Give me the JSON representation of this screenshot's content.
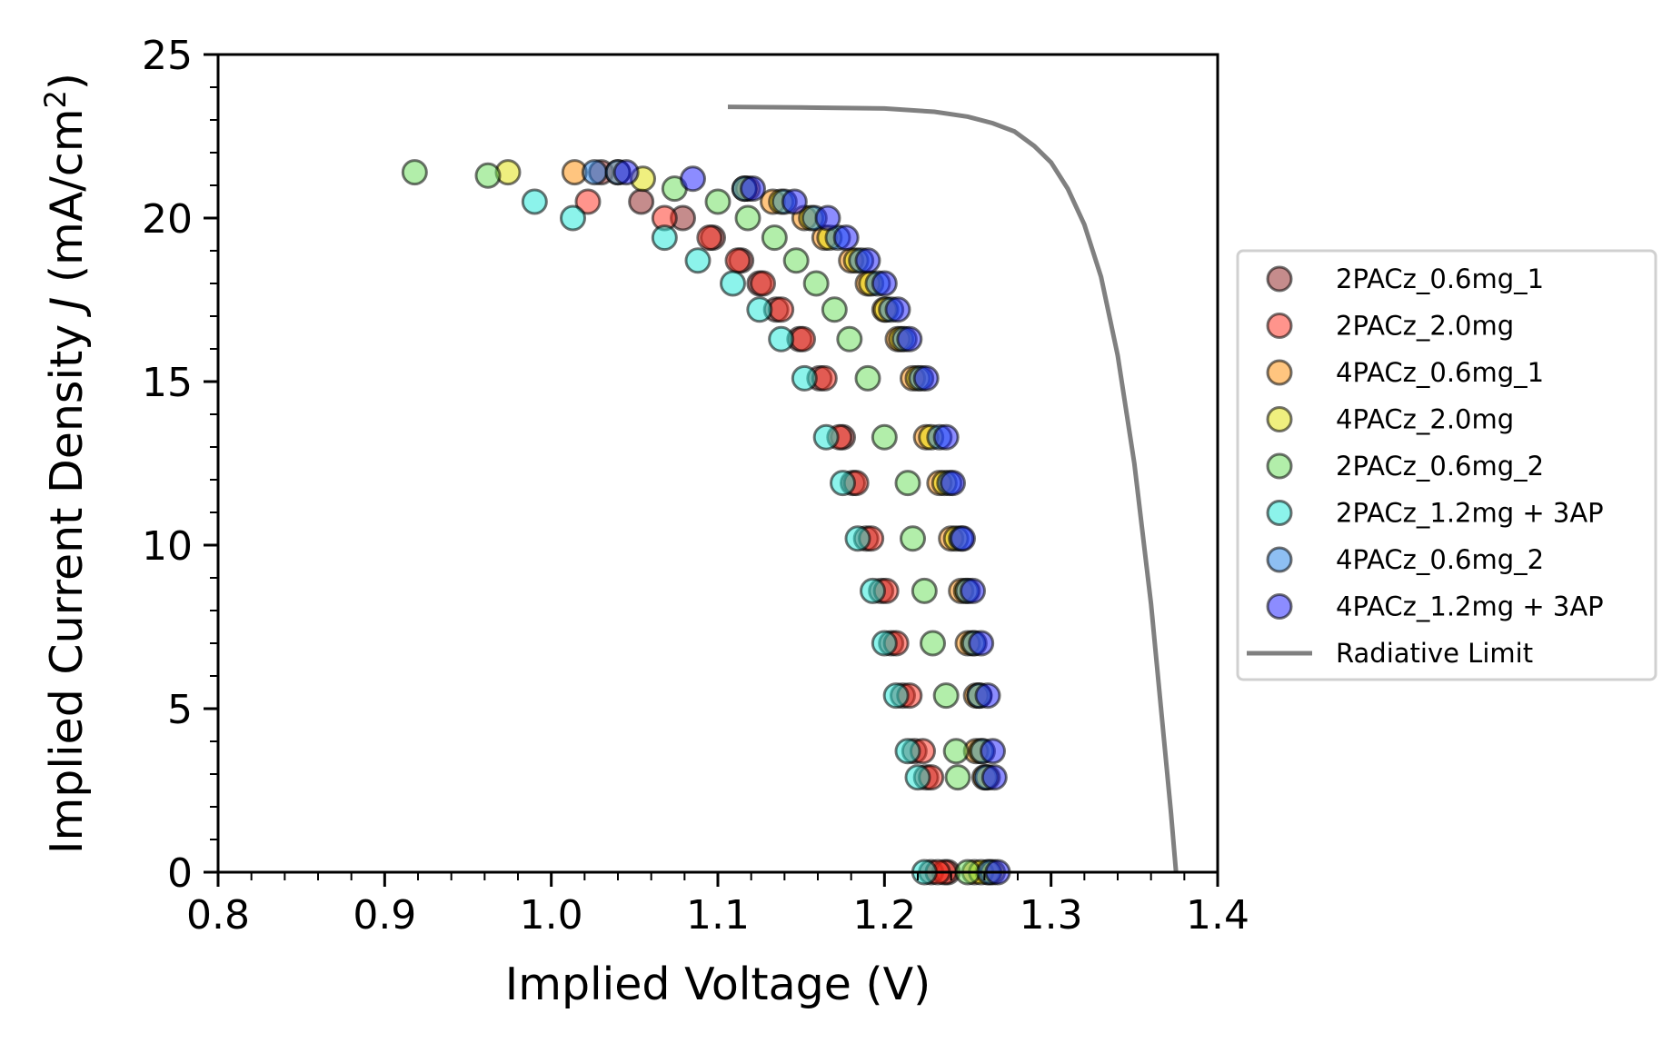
{
  "chart_data": {
    "type": "scatter",
    "xlabel": "Implied Voltage (V)",
    "ylabel_parts": [
      "Implied Current Density ",
      "J",
      " (mA/cm",
      "2",
      ")"
    ],
    "xlim": [
      0.8,
      1.4
    ],
    "ylim": [
      0,
      25
    ],
    "xticks": [
      {
        "value": 0.8,
        "label": "0.8"
      },
      {
        "value": 0.9,
        "label": "0.9"
      },
      {
        "value": 1.0,
        "label": "1.0"
      },
      {
        "value": 1.1,
        "label": "1.1"
      },
      {
        "value": 1.2,
        "label": "1.2"
      },
      {
        "value": 1.3,
        "label": "1.3"
      },
      {
        "value": 1.4,
        "label": "1.4"
      }
    ],
    "yticks": [
      {
        "value": 0,
        "label": "0"
      },
      {
        "value": 5,
        "label": "5"
      },
      {
        "value": 10,
        "label": "10"
      },
      {
        "value": 15,
        "label": "15"
      },
      {
        "value": 20,
        "label": "20"
      },
      {
        "value": 25,
        "label": "25"
      }
    ],
    "grid": false,
    "legend_position": "outside-right",
    "series": [
      {
        "name": "2PACz_0.6mg_1",
        "kind": "scatter",
        "color": "#8B1A1A",
        "x": [
          1.03,
          1.054,
          1.079,
          1.097,
          1.114,
          1.125,
          1.135,
          1.149,
          1.161,
          1.175,
          1.181,
          1.189,
          1.198,
          1.204,
          1.211,
          1.218,
          1.225,
          1.228,
          1.238
        ],
        "y": [
          21.4,
          20.5,
          20.0,
          19.4,
          18.7,
          18.0,
          17.2,
          16.3,
          15.1,
          13.3,
          11.9,
          10.2,
          8.6,
          7.0,
          5.4,
          3.7,
          2.9,
          0.0,
          0.0
        ]
      },
      {
        "name": "2PACz_2.0mg",
        "kind": "scatter",
        "color": "#FF2A1A",
        "x": [
          1.022,
          1.068,
          1.095,
          1.112,
          1.127,
          1.138,
          1.151,
          1.164,
          1.173,
          1.183,
          1.192,
          1.201,
          1.207,
          1.215,
          1.223,
          1.228,
          1.236,
          1.232
        ],
        "y": [
          20.5,
          20.0,
          19.4,
          18.7,
          18.0,
          17.2,
          16.3,
          15.1,
          13.3,
          11.9,
          10.2,
          8.6,
          7.0,
          5.4,
          3.7,
          2.9,
          0.0,
          0.0
        ]
      },
      {
        "name": "4PACz_0.6mg_1",
        "kind": "scatter",
        "color": "#FF8C00",
        "x": [
          1.014,
          1.04,
          1.118,
          1.133,
          1.152,
          1.164,
          1.18,
          1.19,
          1.2,
          1.208,
          1.217,
          1.225,
          1.233,
          1.24,
          1.246,
          1.25,
          1.255,
          1.255,
          1.26,
          1.254,
          1.262
        ],
        "y": [
          21.4,
          21.4,
          20.9,
          20.5,
          20.0,
          19.4,
          18.7,
          18.0,
          17.2,
          16.3,
          15.1,
          13.3,
          11.9,
          10.2,
          8.6,
          7.0,
          5.4,
          3.7,
          2.9,
          0.0,
          0.0
        ]
      },
      {
        "name": "4PACz_2.0mg",
        "kind": "scatter",
        "color": "#E0E000",
        "x": [
          0.974,
          1.055,
          1.116,
          1.138,
          1.156,
          1.167,
          1.183,
          1.192,
          1.201,
          1.21,
          1.22,
          1.228,
          1.236,
          1.243,
          1.249,
          1.253,
          1.257,
          1.258,
          1.262,
          1.258,
          1.265
        ],
        "y": [
          21.4,
          21.2,
          20.9,
          20.5,
          20.0,
          19.4,
          18.7,
          18.0,
          17.2,
          16.3,
          15.1,
          13.3,
          11.9,
          10.2,
          8.6,
          7.0,
          5.4,
          3.7,
          2.9,
          0.0,
          0.0
        ]
      },
      {
        "name": "2PACz_0.6mg_2",
        "kind": "scatter",
        "color": "#66DD55",
        "x": [
          0.918,
          0.962,
          1.074,
          1.1,
          1.118,
          1.134,
          1.147,
          1.159,
          1.17,
          1.179,
          1.19,
          1.2,
          1.214,
          1.217,
          1.224,
          1.229,
          1.237,
          1.243,
          1.244,
          1.25
        ],
        "y": [
          21.4,
          21.3,
          20.9,
          20.5,
          20.0,
          19.4,
          18.7,
          18.0,
          17.2,
          16.3,
          15.1,
          13.3,
          11.9,
          10.2,
          8.6,
          7.0,
          5.4,
          3.7,
          2.9,
          0.0
        ]
      },
      {
        "name": "2PACz_1.2mg + 3AP",
        "kind": "scatter",
        "color": "#1AE8D8",
        "x": [
          0.99,
          1.013,
          1.068,
          1.088,
          1.109,
          1.125,
          1.138,
          1.152,
          1.165,
          1.175,
          1.184,
          1.193,
          1.2,
          1.207,
          1.214,
          1.22,
          1.224
        ],
        "y": [
          20.5,
          20.0,
          19.4,
          18.7,
          18.0,
          17.2,
          16.3,
          15.1,
          13.3,
          11.9,
          10.2,
          8.6,
          7.0,
          5.4,
          3.7,
          2.9,
          0.0
        ]
      },
      {
        "name": "4PACz_0.6mg_2",
        "kind": "scatter",
        "color": "#1E7FE8",
        "x": [
          1.026,
          1.04,
          1.116,
          1.14,
          1.158,
          1.172,
          1.186,
          1.196,
          1.204,
          1.212,
          1.222,
          1.233,
          1.239,
          1.246,
          1.25,
          1.254,
          1.257,
          1.259,
          1.261,
          1.263
        ],
        "y": [
          21.4,
          21.4,
          20.9,
          20.5,
          20.0,
          19.4,
          18.7,
          18.0,
          17.2,
          16.3,
          15.1,
          13.3,
          11.9,
          10.2,
          8.6,
          7.0,
          5.4,
          3.7,
          2.9,
          0.0
        ]
      },
      {
        "name": "4PACz_1.2mg + 3AP",
        "kind": "scatter",
        "color": "#1A1AFF",
        "x": [
          1.045,
          1.085,
          1.121,
          1.146,
          1.166,
          1.177,
          1.19,
          1.2,
          1.208,
          1.215,
          1.225,
          1.237,
          1.241,
          1.247,
          1.253,
          1.258,
          1.262,
          1.265,
          1.266,
          1.268
        ],
        "y": [
          21.4,
          21.2,
          20.9,
          20.5,
          20.0,
          19.4,
          18.7,
          18.0,
          17.2,
          16.3,
          15.1,
          13.3,
          11.9,
          10.2,
          8.6,
          7.0,
          5.4,
          3.7,
          2.9,
          0.0
        ]
      },
      {
        "name": "Radiative Limit",
        "kind": "line",
        "color": "#808080",
        "x": [
          1.106,
          1.15,
          1.2,
          1.23,
          1.25,
          1.265,
          1.278,
          1.29,
          1.3,
          1.31,
          1.32,
          1.33,
          1.34,
          1.35,
          1.36,
          1.366,
          1.372,
          1.375
        ],
        "y": [
          23.4,
          23.38,
          23.35,
          23.25,
          23.1,
          22.9,
          22.65,
          22.2,
          21.7,
          20.9,
          19.8,
          18.2,
          15.8,
          12.5,
          8.2,
          5.0,
          1.8,
          0.0
        ]
      }
    ]
  }
}
